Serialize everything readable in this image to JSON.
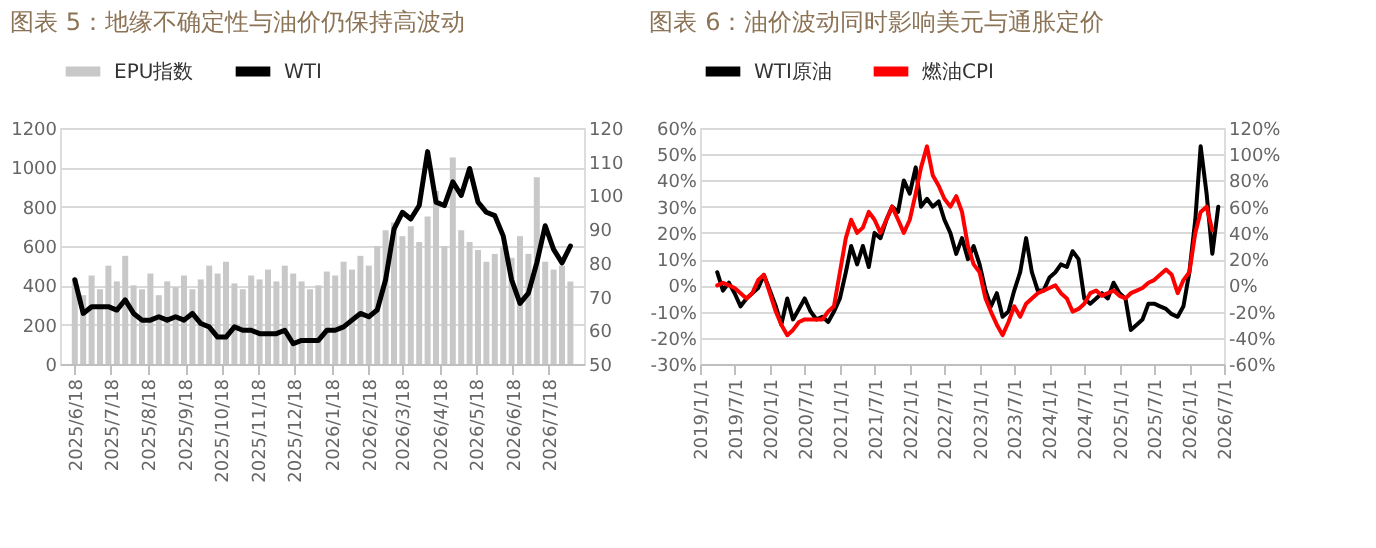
{
  "chart_data": [
    {
      "type": "bar",
      "title": "图表 5：地缘不确定性与油价仍保持高波动",
      "legend": "top",
      "grid": "y",
      "x": [
        "2025-06-18",
        "2025-06-25",
        "2025-07-02",
        "2025-07-09",
        "2025-07-16",
        "2025-07-23",
        "2025-07-30",
        "2025-08-06",
        "2025-08-13",
        "2025-08-20",
        "2025-08-27",
        "2025-09-03",
        "2025-09-10",
        "2025-09-17",
        "2025-09-24",
        "2025-10-01",
        "2025-10-08",
        "2025-10-15",
        "2025-10-22",
        "2025-10-29",
        "2025-11-05",
        "2025-11-12",
        "2025-11-19",
        "2025-11-26",
        "2025-12-03",
        "2025-12-10",
        "2025-12-17",
        "2025-12-24",
        "2025-12-31",
        "2026-01-07",
        "2026-01-14",
        "2026-01-21",
        "2026-01-28",
        "2026-02-04",
        "2026-02-11",
        "2026-02-18",
        "2026-02-25",
        "2026-03-04",
        "2026-03-11",
        "2026-03-18",
        "2026-03-25",
        "2026-04-01",
        "2026-04-08",
        "2026-04-15",
        "2026-04-22",
        "2026-04-29",
        "2026-05-06",
        "2026-05-13",
        "2026-05-20",
        "2026-05-27",
        "2026-06-03",
        "2026-06-10",
        "2026-06-17",
        "2026-06-24",
        "2026-07-01",
        "2026-07-08",
        "2026-07-15",
        "2026-07-22",
        "2026-07-29",
        "2026-08-05"
      ],
      "xlim": [
        "2025-06-14",
        "2026-08-08"
      ],
      "xticks": [
        {
          "value": "2025-06-18",
          "label": "2025/6/18"
        },
        {
          "value": "2025-07-18",
          "label": "2025/7/18"
        },
        {
          "value": "2025-08-18",
          "label": "2025/8/18"
        },
        {
          "value": "2025-09-18",
          "label": "2025/9/18"
        },
        {
          "value": "2025-10-18",
          "label": "2025/10/18"
        },
        {
          "value": "2025-11-18",
          "label": "2025/11/18"
        },
        {
          "value": "2025-12-18",
          "label": "2025/12/18"
        },
        {
          "value": "2026-01-18",
          "label": "2026/1/18"
        },
        {
          "value": "2026-02-18",
          "label": "2026/2/18"
        },
        {
          "value": "2026-03-18",
          "label": "2026/3/18"
        },
        {
          "value": "2026-04-18",
          "label": "2026/4/18"
        },
        {
          "value": "2026-05-18",
          "label": "2026/5/18"
        },
        {
          "value": "2026-06-18",
          "label": "2026/6/18"
        },
        {
          "value": "2026-07-18",
          "label": "2026/7/18"
        }
      ],
      "ylim": [
        0,
        1200
      ],
      "yticks": [
        0,
        200,
        400,
        600,
        800,
        1000,
        1200
      ],
      "y2lim": [
        50,
        120
      ],
      "y2ticks": [
        50,
        60,
        70,
        80,
        90,
        100,
        110,
        120
      ],
      "series": [
        {
          "name": "EPU指数",
          "type": "bar",
          "color": "#c8c8c8",
          "values": [
            430,
            350,
            450,
            380,
            500,
            420,
            550,
            400,
            380,
            460,
            350,
            420,
            390,
            450,
            380,
            430,
            500,
            460,
            520,
            410,
            380,
            450,
            430,
            480,
            420,
            500,
            460,
            420,
            380,
            400,
            470,
            450,
            520,
            480,
            550,
            500,
            600,
            680,
            720,
            650,
            700,
            620,
            750,
            880,
            600,
            1050,
            680,
            620,
            580,
            520,
            560,
            600,
            540,
            650,
            560,
            950,
            520,
            480,
            500,
            420
          ]
        },
        {
          "name": "WTI",
          "type": "line",
          "axis": "y2",
          "color": "#000000",
          "values": [
            75,
            65,
            67,
            67,
            67,
            66,
            69,
            65,
            63,
            63,
            64,
            63,
            64,
            63,
            65,
            62,
            61,
            58,
            58,
            61,
            60,
            60,
            59,
            59,
            59,
            60,
            56,
            57,
            57,
            57,
            60,
            60,
            61,
            63,
            65,
            64,
            66,
            75,
            90,
            95,
            93,
            97,
            113,
            98,
            97,
            104,
            100,
            108,
            98,
            95,
            94,
            88,
            75,
            68,
            71,
            80,
            91,
            84,
            80,
            85
          ]
        }
      ]
    },
    {
      "type": "line",
      "title": "图表 6：油价波动同时影响美元与通胀定价",
      "legend": "top",
      "grid": "y",
      "x": [
        "2019-04",
        "2019-05",
        "2019-06",
        "2019-07",
        "2019-08",
        "2019-09",
        "2019-10",
        "2019-11",
        "2019-12",
        "2020-01",
        "2020-02",
        "2020-03",
        "2020-04",
        "2020-05",
        "2020-06",
        "2020-07",
        "2020-08",
        "2020-09",
        "2020-10",
        "2020-11",
        "2020-12",
        "2021-01",
        "2021-02",
        "2021-03",
        "2021-04",
        "2021-05",
        "2021-06",
        "2021-07",
        "2021-08",
        "2021-09",
        "2021-10",
        "2021-11",
        "2021-12",
        "2022-01",
        "2022-02",
        "2022-03",
        "2022-04",
        "2022-05",
        "2022-06",
        "2022-07",
        "2022-08",
        "2022-09",
        "2022-10",
        "2022-11",
        "2022-12",
        "2023-01",
        "2023-02",
        "2023-03",
        "2023-04",
        "2023-05",
        "2023-06",
        "2023-07",
        "2023-08",
        "2023-09",
        "2023-10",
        "2023-11",
        "2023-12",
        "2024-01",
        "2024-02",
        "2024-03",
        "2024-04",
        "2024-05",
        "2024-06",
        "2024-07",
        "2024-08",
        "2024-09",
        "2024-10",
        "2024-11",
        "2024-12",
        "2025-01",
        "2025-02",
        "2025-03",
        "2025-04",
        "2025-05",
        "2025-06",
        "2025-07",
        "2025-08",
        "2025-09",
        "2025-10",
        "2025-11",
        "2025-12",
        "2026-01",
        "2026-02",
        "2026-03",
        "2026-04",
        "2026-05",
        "2026-06"
      ],
      "xlim": [
        "2019-01",
        "2026-07"
      ],
      "xticks": [
        {
          "value": "2019-01",
          "label": "2019/1/1"
        },
        {
          "value": "2019-07",
          "label": "2019/7/1"
        },
        {
          "value": "2020-01",
          "label": "2020/1/1"
        },
        {
          "value": "2020-07",
          "label": "2020/7/1"
        },
        {
          "value": "2021-01",
          "label": "2021/1/1"
        },
        {
          "value": "2021-07",
          "label": "2021/7/1"
        },
        {
          "value": "2022-01",
          "label": "2022/1/1"
        },
        {
          "value": "2022-07",
          "label": "2022/7/1"
        },
        {
          "value": "2023-01",
          "label": "2023/1/1"
        },
        {
          "value": "2023-07",
          "label": "2023/7/1"
        },
        {
          "value": "2024-01",
          "label": "2024/1/1"
        },
        {
          "value": "2024-07",
          "label": "2024/7/1"
        },
        {
          "value": "2025-01",
          "label": "2025/1/1"
        },
        {
          "value": "2025-07",
          "label": "2025/7/1"
        },
        {
          "value": "2026-01",
          "label": "2026/1/1"
        },
        {
          "value": "2026-07",
          "label": "2026/7/1"
        }
      ],
      "ylim": [
        -30,
        60
      ],
      "yticks": [
        {
          "value": -30,
          "label": "-30%"
        },
        {
          "value": -20,
          "label": "-20%"
        },
        {
          "value": -10,
          "label": "-10%"
        },
        {
          "value": 0,
          "label": "0%"
        },
        {
          "value": 10,
          "label": "10%"
        },
        {
          "value": 20,
          "label": "20%"
        },
        {
          "value": 30,
          "label": "30%"
        },
        {
          "value": 40,
          "label": "40%"
        },
        {
          "value": 50,
          "label": "50%"
        },
        {
          "value": 60,
          "label": "60%"
        }
      ],
      "y2lim": [
        -60,
        120
      ],
      "y2ticks": [
        {
          "value": -60,
          "label": "-60%"
        },
        {
          "value": -40,
          "label": "-40%"
        },
        {
          "value": -20,
          "label": "-20%"
        },
        {
          "value": 0,
          "label": "0%"
        },
        {
          "value": 20,
          "label": "20%"
        },
        {
          "value": 40,
          "label": "40%"
        },
        {
          "value": 60,
          "label": "60%"
        },
        {
          "value": 80,
          "label": "80%"
        },
        {
          "value": 100,
          "label": "100%"
        },
        {
          "value": 120,
          "label": "120%"
        }
      ],
      "series": [
        {
          "name": "WTI原油",
          "color": "#000000",
          "values": [
            5,
            -2,
            1,
            -3,
            -8,
            -5,
            -3,
            -1,
            4,
            -2,
            -8,
            -15,
            -5,
            -13,
            -9,
            -5,
            -10,
            -13,
            -12,
            -14,
            -10,
            -5,
            5,
            15,
            8,
            15,
            7,
            20,
            18,
            25,
            30,
            28,
            40,
            35,
            45,
            30,
            33,
            30,
            32,
            25,
            20,
            12,
            18,
            10,
            15,
            8,
            -2,
            -8,
            -3,
            -12,
            -10,
            -2,
            5,
            18,
            5,
            -2,
            -2,
            3,
            5,
            8,
            7,
            13,
            10,
            -5,
            -7,
            -5,
            -3,
            -5,
            1,
            -3,
            -5,
            -17,
            -15,
            -13,
            -7,
            -7,
            -8,
            -9,
            -11,
            -12,
            -8,
            5,
            25,
            53,
            35,
            12,
            30
          ]
        },
        {
          "name": "燃油CPI",
          "axis": "y2",
          "color": "#ff0000",
          "values": [
            0,
            2,
            0,
            -2,
            -6,
            -10,
            -6,
            4,
            8,
            -6,
            -20,
            -30,
            -38,
            -34,
            -28,
            -26,
            -26,
            -26,
            -26,
            -20,
            -16,
            10,
            36,
            50,
            40,
            44,
            56,
            50,
            40,
            50,
            60,
            50,
            40,
            50,
            70,
            90,
            106,
            84,
            76,
            66,
            60,
            68,
            56,
            30,
            16,
            10,
            -10,
            -20,
            -30,
            -38,
            -28,
            -16,
            -24,
            -14,
            -10,
            -6,
            -4,
            -2,
            0,
            -6,
            -10,
            -20,
            -18,
            -14,
            -6,
            -4,
            -8,
            -6,
            -4,
            -8,
            -10,
            -6,
            -4,
            -2,
            2,
            4,
            8,
            12,
            8,
            -6,
            4,
            10,
            40,
            56,
            60,
            42,
            null
          ]
        }
      ]
    }
  ]
}
